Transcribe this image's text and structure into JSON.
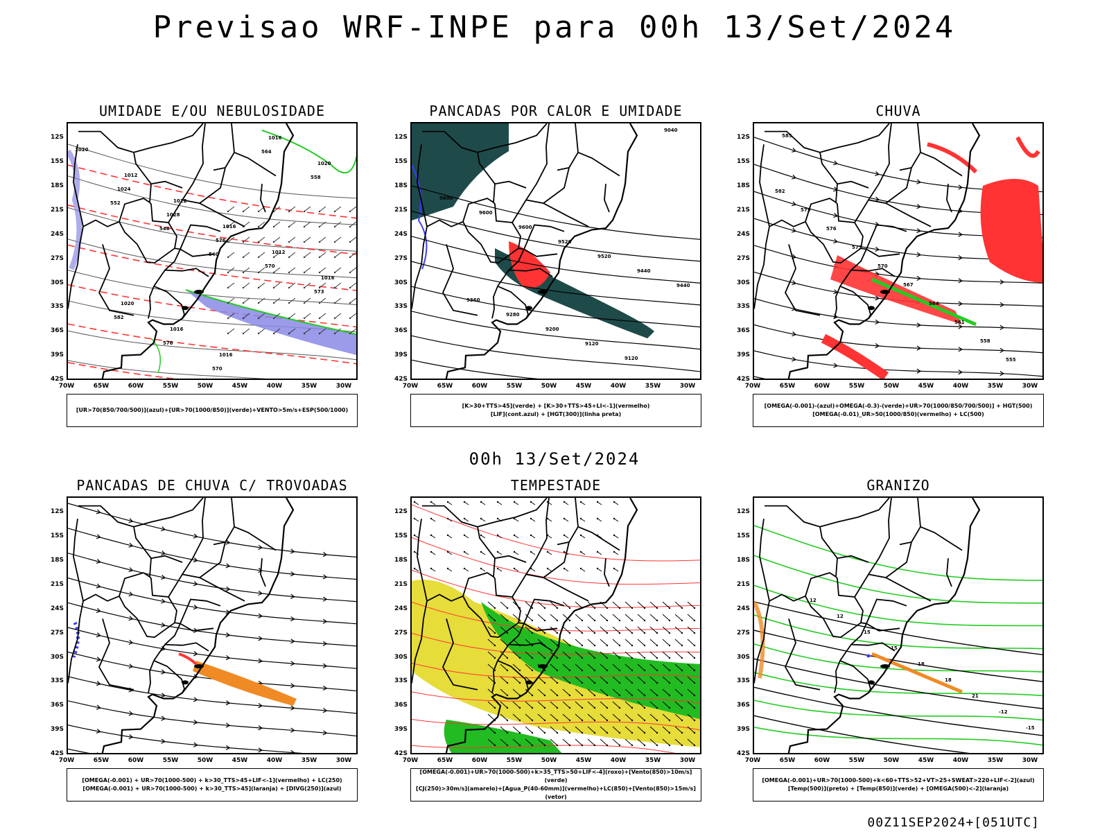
{
  "title": "Previsao WRF-INPE  para 00h 13/Set/2024",
  "mid_title": "00h 13/Set/2024",
  "footer": "00Z11SEP2024+[051UTC]",
  "lat_labels": [
    "12S",
    "15S",
    "18S",
    "21S",
    "24S",
    "27S",
    "30S",
    "33S",
    "36S",
    "39S",
    "42S"
  ],
  "lon_labels": [
    "70W",
    "65W",
    "60W",
    "55W",
    "50W",
    "45W",
    "40W",
    "35W",
    "30W"
  ],
  "colors": {
    "blue": "#3b3bff",
    "green": "#22cc22",
    "red": "#ff3333",
    "orange": "#f08a24",
    "yellow": "#e6dc3a",
    "darkteal": "#1f4a4a",
    "purple": "#8a8ae6"
  },
  "panels": [
    {
      "title": "UMIDADE E/OU NEBULOSIDADE",
      "legend": [
        "[UR>70(850/700/500)](azul)+[UR>70(1000/850)](verde)+VENTO>5m/s+ESP(500/1000)"
      ]
    },
    {
      "title": "PANCADAS POR CALOR E UMIDADE",
      "legend": [
        "[K>30+TTS>45](verde) + [K>30+TTS>45+LI<-1](vermelho)",
        "[LIF](cont.azul) + [HGT(300)](linha preta)"
      ]
    },
    {
      "title": "CHUVA",
      "legend": [
        "[OMEGA(-0.001)-(azul)+OMEGA(-0.3)-(verde)+UR>70(1000/850/700/500)] + HGT(500)",
        "[OMEGA(-0.01)_UR>50(1000/850)(vermelho) + LC(500)"
      ]
    },
    {
      "title": "PANCADAS DE CHUVA C/ TROVOADAS",
      "legend": [
        "[OMEGA(-0.001) + UR>70(1000-500) + k>30_TTS>45+LIF<-1](vermelho) + LC(250)",
        "[OMEGA(-0.001) + UR>70(1000-500) + k>30_TTS>45](laranja) + [DIVG(250)](azul)"
      ]
    },
    {
      "title": "TEMPESTADE",
      "legend": [
        "[OMEGA(-0.001)+UR>70(1000-500)+k>35_TTS>50+LIF<-4](roxo)+[Vento(850)>10m/s](verde)",
        "[CJ(250)>30m/s](amarelo)+[Agua_P(40-60mm)](vermelho)+LC(850)+[Vento(850)>15m/s](vetor)"
      ]
    },
    {
      "title": "GRANIZO",
      "legend": [
        "[OMEGA(-0.001)+UR>70(1000-500)+k<60+TTS>52+VT>25+SWEAT>220+LIF<-2](azul)",
        "[Temp(500)](preto) + [Temp(850)](verde) + [OMEGA(500)<-2](laranja)"
      ]
    }
  ],
  "contour_labels": {
    "p1": [
      "1020",
      "1012",
      "1012",
      "1016",
      "1012",
      "1016",
      "1020",
      "1016",
      "1016",
      "1016",
      "1020",
      "1024",
      "1028",
      "576",
      "570",
      "573",
      "582",
      "576",
      "570",
      "564",
      "558",
      "552",
      "546",
      "540"
    ],
    "p2": [
      "9600",
      "9600",
      "9600",
      "9520",
      "9520",
      "9440",
      "9440",
      "9360",
      "9280",
      "9200",
      "9120",
      "9120",
      "9040"
    ],
    "p3": [
      "582",
      "579",
      "576",
      "573",
      "570",
      "567",
      "564",
      "561",
      "558",
      "555",
      "585"
    ],
    "p6": [
      "12",
      "12",
      "15",
      "15",
      "18",
      "18",
      "21",
      "-12",
      "-15"
    ]
  }
}
